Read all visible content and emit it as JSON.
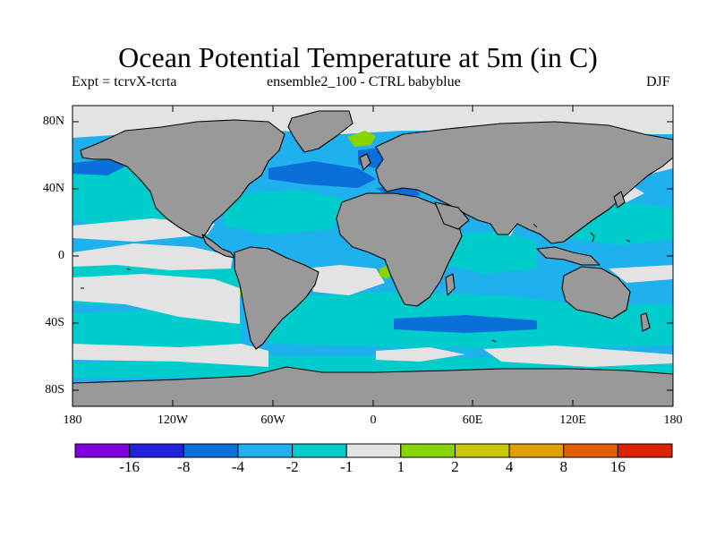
{
  "title": "Ocean Potential Temperature at 5m (in C)",
  "subtitle_left": "Expt = tcrvX-tcrta",
  "subtitle_center": "ensemble2_100 - CTRL babyblue",
  "subtitle_right": "DJF",
  "lat_ticks": [
    "80N",
    "40N",
    "0",
    "40S",
    "80S"
  ],
  "lon_ticks": [
    "180",
    "120W",
    "60W",
    "0",
    "60E",
    "120E",
    "180"
  ],
  "colorbar": {
    "colors": [
      "#7f00dd",
      "#2222dd",
      "#0a6fd8",
      "#1fb0ee",
      "#00cccc",
      "#e3e3e3",
      "#88d400",
      "#c8c800",
      "#e0a000",
      "#e06000",
      "#dd2200"
    ],
    "labels": [
      "-16",
      "-8",
      "-4",
      "-2",
      "-1",
      "1",
      "2",
      "4",
      "8",
      "16"
    ]
  },
  "map_colors": {
    "land": "#999999",
    "ocean_base": "#1fb0ee",
    "near_zero": "#e3e3e3",
    "small_negative": "#00cccc",
    "moderate_negative": "#0a6fd8",
    "small_positive": "#88d400"
  }
}
